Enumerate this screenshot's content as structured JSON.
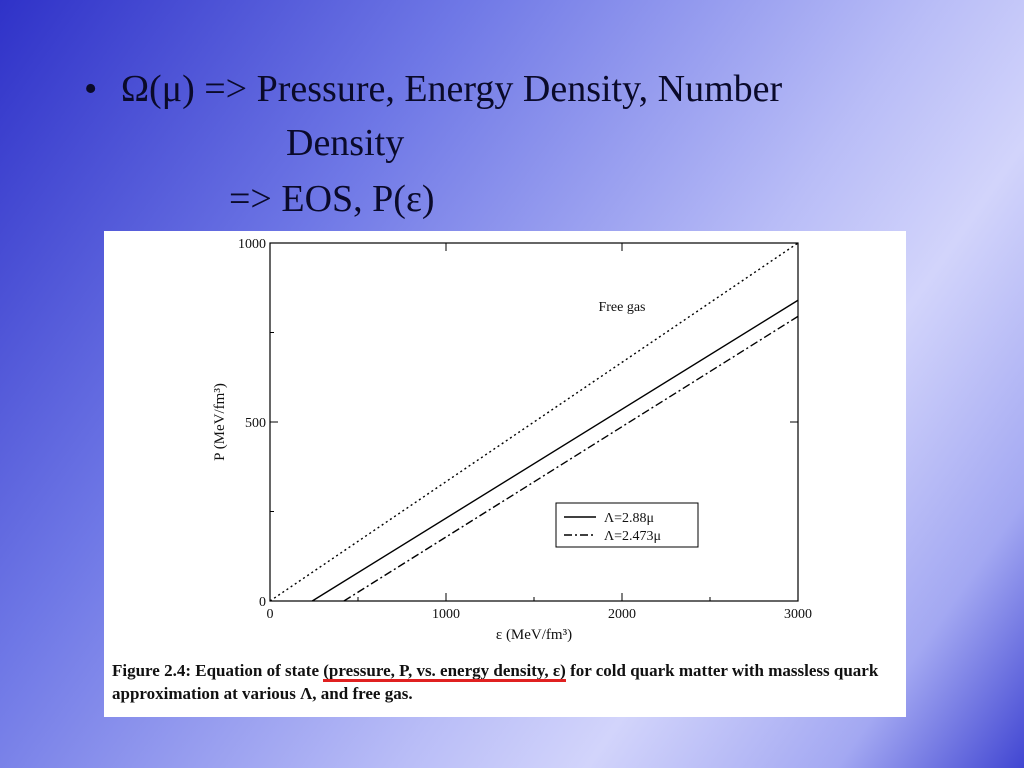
{
  "slide": {
    "bullet_symbol": "•",
    "line1": "Ω(μ) => Pressure, Energy Density, Number",
    "line2": "Density",
    "line3": "=> EOS,   P(ε)"
  },
  "caption": {
    "prefix": "Figure 2.4: Equation of state ",
    "underlined": "(pressure, P, vs. energy density, ε)",
    "suffix": " for cold quark matter with massless quark approximation at various Λ, and free gas."
  },
  "chart_data": {
    "type": "line",
    "xlabel": "ε (MeV/fm³)",
    "ylabel": "P (MeV/fm³)",
    "xlim": [
      0,
      3000
    ],
    "ylim": [
      0,
      1000
    ],
    "xticks": [
      0,
      1000,
      2000,
      3000
    ],
    "yticks": [
      0,
      500,
      1000
    ],
    "grid": false,
    "legend_position": "center-right",
    "annotations": [
      {
        "text": "Free gas",
        "x": 2000,
        "y": 810
      }
    ],
    "series": [
      {
        "name": "",
        "style": "dotted",
        "x": [
          0,
          3000
        ],
        "y": [
          0,
          1000
        ]
      },
      {
        "name": "Λ=2.88μ",
        "style": "solid",
        "x": [
          240,
          3000
        ],
        "y": [
          0,
          840
        ]
      },
      {
        "name": "Λ=2.473μ",
        "style": "dashdot",
        "x": [
          420,
          3000
        ],
        "y": [
          0,
          795
        ]
      }
    ]
  }
}
